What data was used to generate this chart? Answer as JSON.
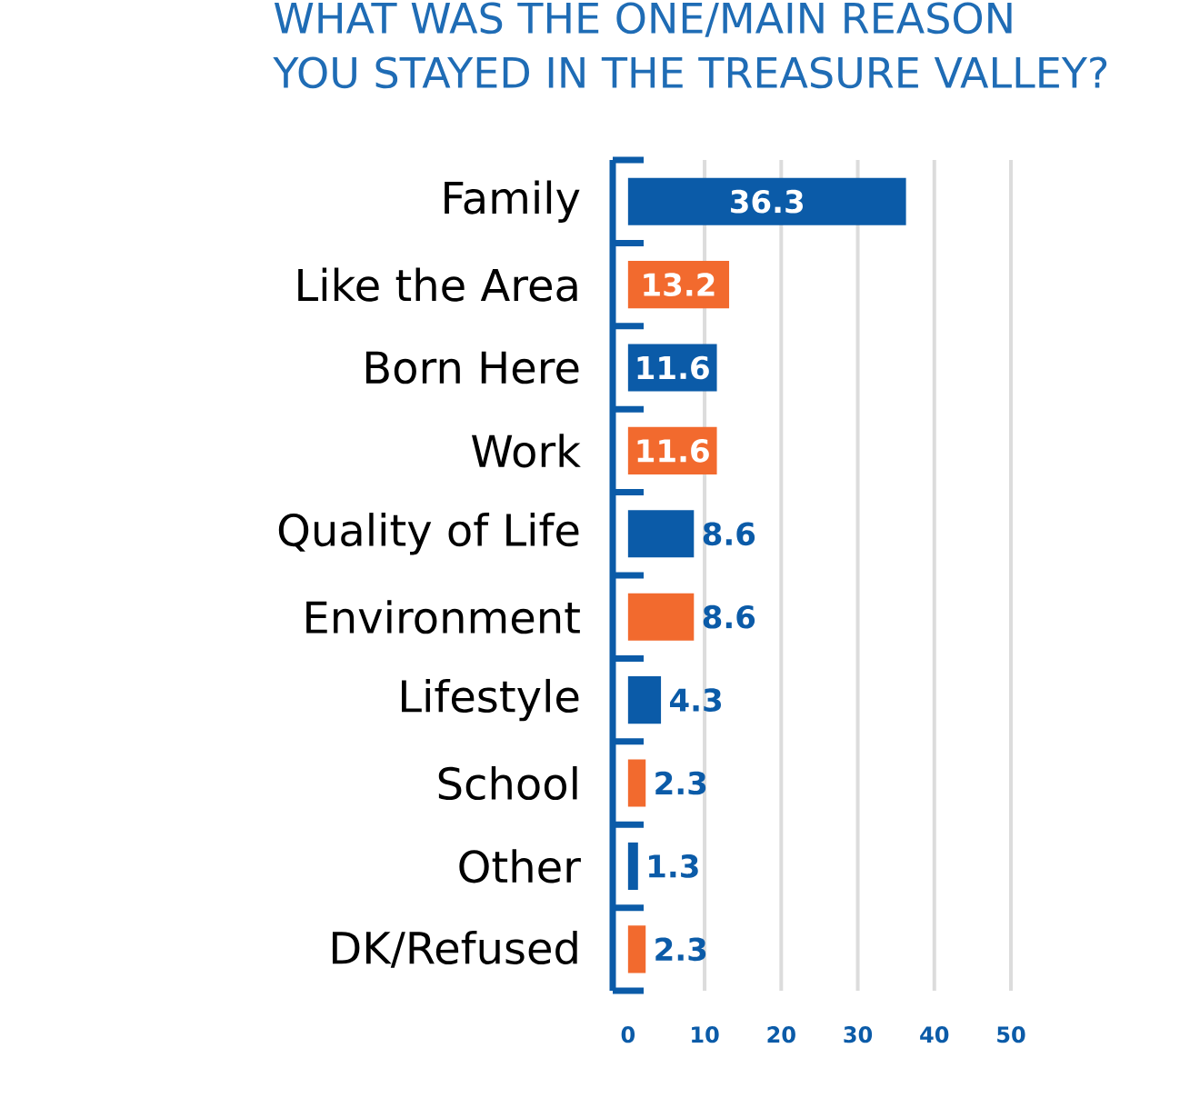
{
  "chart_data": {
    "type": "bar",
    "orientation": "horizontal",
    "title": "WHAT WAS THE ONE/MAIN REASON YOU STAYED IN THE TREASURE VALLEY?",
    "categories": [
      "Family",
      "Like the Area",
      "Born Here",
      "Work",
      "Quality of Life",
      "Environment",
      "Lifestyle",
      "School",
      "Other",
      "DK/Refused"
    ],
    "values": [
      36.3,
      13.2,
      11.6,
      11.6,
      8.6,
      8.6,
      4.3,
      2.3,
      1.3,
      2.3
    ],
    "colors": [
      "#0b5ba8",
      "#f26a2e",
      "#0b5ba8",
      "#f26a2e",
      "#0b5ba8",
      "#f26a2e",
      "#0b5ba8",
      "#f26a2e",
      "#0b5ba8",
      "#f26a2e"
    ],
    "xlim": [
      -2,
      50
    ],
    "xticks": [
      0,
      10,
      20,
      30,
      40,
      50
    ],
    "grid": "x",
    "data_labels": true
  }
}
